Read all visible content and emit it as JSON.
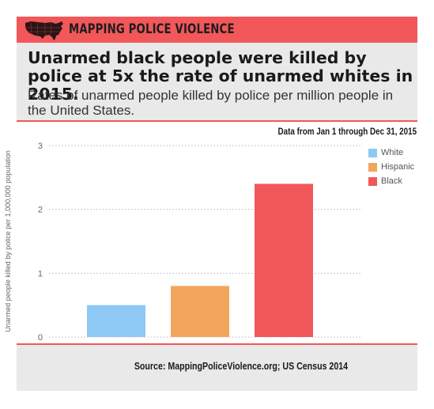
{
  "brand": {
    "name": "MAPPING POLICE VIOLENCE"
  },
  "header": {
    "headline": "Unarmed black people were killed by police at 5x the rate of unarmed whites in 2015.",
    "subhead": "Rates of unarmed people killed by police per million people in the United States."
  },
  "note": "Data from Jan 1 through Dec 31, 2015",
  "footer": {
    "source": "Source: MappingPoliceViolence.org; US Census 2014"
  },
  "colors": {
    "brand_red": "#f2575a",
    "panel_gray": "#e9e9e9",
    "white_series": "#8ec9f5",
    "hispanic_series": "#f3a55e",
    "black_series": "#f2575a"
  },
  "chart_data": {
    "type": "bar",
    "title": "",
    "xlabel": "",
    "ylabel": "Unarmed people killed by police per 1,000,000 population",
    "ylim": [
      0,
      3
    ],
    "yticks": [
      0,
      1,
      2,
      3
    ],
    "grid": true,
    "legend_position": "top-right",
    "series": [
      {
        "name": "White",
        "value": 0.5,
        "color": "#8ec9f5"
      },
      {
        "name": "Hispanic",
        "value": 0.8,
        "color": "#f3a55e"
      },
      {
        "name": "Black",
        "value": 2.4,
        "color": "#f2575a"
      }
    ]
  }
}
